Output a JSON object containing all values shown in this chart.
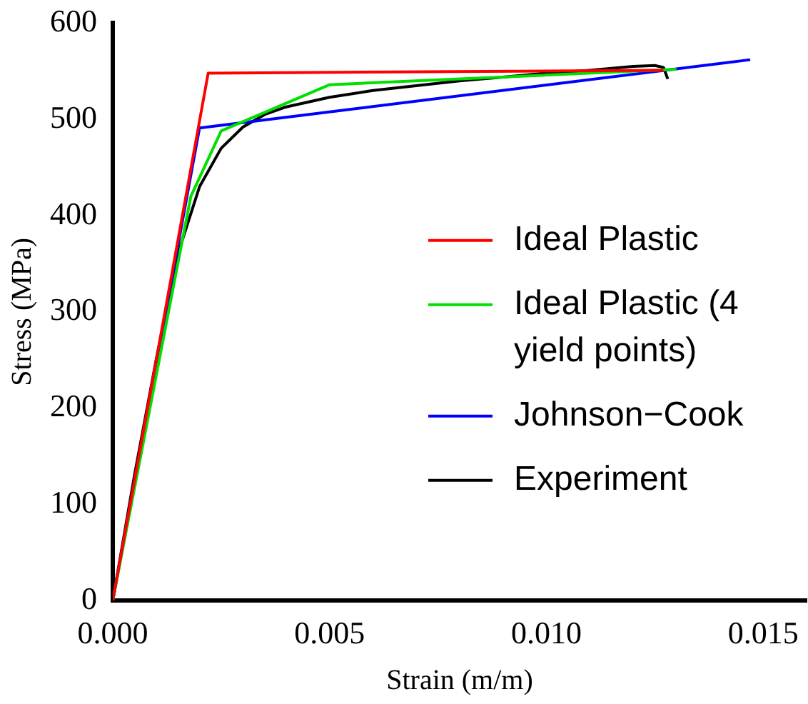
{
  "chart_data": {
    "type": "line",
    "xlabel": "Strain (m/m)",
    "ylabel": "Stress (MPa)",
    "xlim": [
      0,
      0.016
    ],
    "ylim": [
      0,
      600
    ],
    "xticks": [
      {
        "value": 0,
        "label": "0.000"
      },
      {
        "value": 0.005,
        "label": "0.005"
      },
      {
        "value": 0.01,
        "label": "0.010"
      },
      {
        "value": 0.015,
        "label": "0.015"
      }
    ],
    "yticks": [
      0,
      100,
      200,
      300,
      400,
      500,
      600
    ],
    "grid": false,
    "legend": "right",
    "marker": "none",
    "line_style": "solid",
    "series": [
      {
        "name": "Ideal Plastic",
        "color": "#ff0000",
        "x": [
          0,
          0.0022,
          0.0127
        ],
        "values": [
          0,
          548,
          551
        ]
      },
      {
        "name": "Ideal Plastic (4 yield points)",
        "color": "#00e000",
        "x": [
          0,
          0.0018,
          0.0025,
          0.005,
          0.013
        ],
        "values": [
          0,
          420,
          488,
          536,
          552
        ]
      },
      {
        "name": "Johnson−Cook",
        "color": "#0000ff",
        "x": [
          0,
          0.002,
          0.0147
        ],
        "values": [
          0,
          491,
          562
        ]
      },
      {
        "name": "Experiment",
        "color": "#000000",
        "x": [
          0,
          0.0005,
          0.001,
          0.0015,
          0.002,
          0.0025,
          0.003,
          0.0035,
          0.004,
          0.005,
          0.006,
          0.007,
          0.008,
          0.009,
          0.01,
          0.011,
          0.012,
          0.0125,
          0.0127,
          0.0128
        ],
        "values": [
          0,
          130,
          250,
          360,
          430,
          470,
          492,
          505,
          513,
          523,
          530,
          535,
          540,
          544,
          548,
          551,
          555,
          556,
          554,
          542
        ]
      }
    ]
  }
}
